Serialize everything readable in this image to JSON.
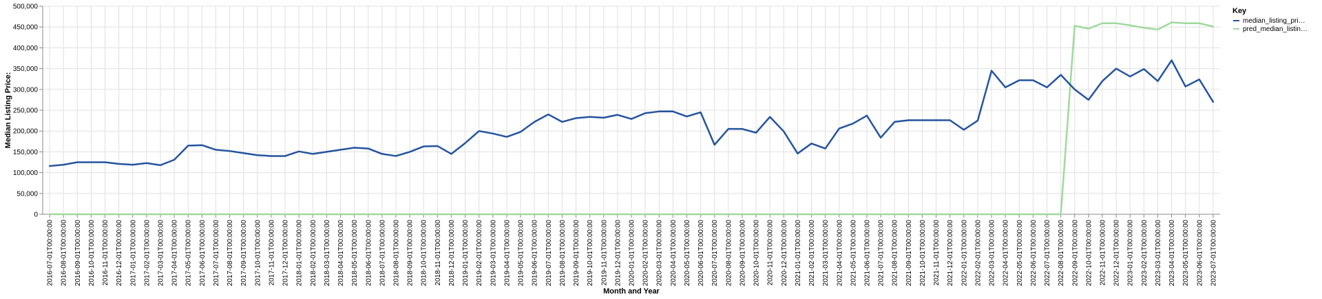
{
  "chart_data": {
    "type": "line",
    "xlabel": "Month and Year",
    "ylabel": "Median Listing Price:",
    "ylim": [
      0,
      500000
    ],
    "y_ticks": [
      0,
      50000,
      100000,
      150000,
      200000,
      250000,
      300000,
      350000,
      400000,
      450000,
      500000
    ],
    "y_tick_labels": [
      "0",
      "50,000",
      "100,000",
      "150,000",
      "200,000",
      "250,000",
      "300,000",
      "350,000",
      "400,000",
      "450,000",
      "500,000"
    ],
    "grid": true,
    "legend": {
      "title": "Key",
      "position": "right"
    },
    "x": [
      "2016-07-01T00:00:00",
      "2016-08-01T00:00:00",
      "2016-09-01T00:00:00",
      "2016-10-01T00:00:00",
      "2016-11-01T00:00:00",
      "2016-12-01T00:00:00",
      "2017-01-01T00:00:00",
      "2017-02-01T00:00:00",
      "2017-03-01T00:00:00",
      "2017-04-01T00:00:00",
      "2017-05-01T00:00:00",
      "2017-06-01T00:00:00",
      "2017-07-01T00:00:00",
      "2017-08-01T00:00:00",
      "2017-09-01T00:00:00",
      "2017-10-01T00:00:00",
      "2017-11-01T00:00:00",
      "2017-12-01T00:00:00",
      "2018-01-01T00:00:00",
      "2018-02-01T00:00:00",
      "2018-03-01T00:00:00",
      "2018-04-01T00:00:00",
      "2018-05-01T00:00:00",
      "2018-06-01T00:00:00",
      "2018-07-01T00:00:00",
      "2018-08-01T00:00:00",
      "2018-09-01T00:00:00",
      "2018-10-01T00:00:00",
      "2018-11-01T00:00:00",
      "2018-12-01T00:00:00",
      "2019-01-01T00:00:00",
      "2019-02-01T00:00:00",
      "2019-03-01T00:00:00",
      "2019-04-01T00:00:00",
      "2019-05-01T00:00:00",
      "2019-06-01T00:00:00",
      "2019-07-01T00:00:00",
      "2019-08-01T00:00:00",
      "2019-09-01T00:00:00",
      "2019-10-01T00:00:00",
      "2019-11-01T00:00:00",
      "2019-12-01T00:00:00",
      "2020-01-01T00:00:00",
      "2020-02-01T00:00:00",
      "2020-03-01T00:00:00",
      "2020-04-01T00:00:00",
      "2020-05-01T00:00:00",
      "2020-06-01T00:00:00",
      "2020-07-01T00:00:00",
      "2020-08-01T00:00:00",
      "2020-09-01T00:00:00",
      "2020-10-01T00:00:00",
      "2020-11-01T00:00:00",
      "2020-12-01T00:00:00",
      "2021-01-01T00:00:00",
      "2021-02-01T00:00:00",
      "2021-03-01T00:00:00",
      "2021-04-01T00:00:00",
      "2021-05-01T00:00:00",
      "2021-06-01T00:00:00",
      "2021-07-01T00:00:00",
      "2021-08-01T00:00:00",
      "2021-09-01T00:00:00",
      "2021-10-01T00:00:00",
      "2021-11-01T00:00:00",
      "2021-12-01T00:00:00",
      "2022-01-01T00:00:00",
      "2022-02-01T00:00:00",
      "2022-03-01T00:00:00",
      "2022-04-01T00:00:00",
      "2022-05-01T00:00:00",
      "2022-06-01T00:00:00",
      "2022-07-01T00:00:00",
      "2022-08-01T00:00:00",
      "2022-09-01T00:00:00",
      "2022-10-01T00:00:00",
      "2022-11-01T00:00:00",
      "2022-12-01T00:00:00",
      "2023-01-01T00:00:00",
      "2023-02-01T00:00:00",
      "2023-03-01T00:00:00",
      "2023-04-01T00:00:00",
      "2023-05-01T00:00:00",
      "2023-06-01T00:00:00",
      "2023-07-01T00:00:00"
    ],
    "series": [
      {
        "name": "median_listing_pri…",
        "color": "#24539f",
        "values": [
          116000,
          119000,
          125000,
          125000,
          125000,
          121000,
          119000,
          123000,
          118000,
          131000,
          165000,
          166000,
          155000,
          152000,
          147000,
          142000,
          140000,
          140000,
          151000,
          145000,
          150000,
          155000,
          160000,
          158000,
          145000,
          140000,
          150000,
          163000,
          164000,
          145000,
          171000,
          200000,
          194000,
          186000,
          198000,
          222000,
          240000,
          222000,
          231000,
          234000,
          232000,
          239000,
          229000,
          243000,
          247000,
          247000,
          235000,
          245000,
          167000,
          205000,
          205000,
          196000,
          234000,
          199000,
          146000,
          170000,
          158000,
          206000,
          218000,
          237000,
          184000,
          222000,
          226000,
          226000,
          226000,
          226000,
          203000,
          225000,
          345000,
          305000,
          322000,
          322000,
          305000,
          335000,
          300000,
          275000,
          320000,
          350000,
          331000,
          349000,
          320000,
          370000,
          307000,
          324000,
          270000
        ]
      },
      {
        "name": "pred_median_listin…",
        "color": "#a0d99b",
        "values": [
          0,
          0,
          0,
          0,
          0,
          0,
          0,
          0,
          0,
          0,
          0,
          0,
          0,
          0,
          0,
          0,
          0,
          0,
          0,
          0,
          0,
          0,
          0,
          0,
          0,
          0,
          0,
          0,
          0,
          0,
          0,
          0,
          0,
          0,
          0,
          0,
          0,
          0,
          0,
          0,
          0,
          0,
          0,
          0,
          0,
          0,
          0,
          0,
          0,
          0,
          0,
          0,
          0,
          0,
          0,
          0,
          0,
          0,
          0,
          0,
          0,
          0,
          0,
          0,
          0,
          0,
          0,
          0,
          0,
          0,
          0,
          0,
          0,
          0,
          453000,
          446000,
          459000,
          459000,
          454000,
          448000,
          444000,
          461000,
          459000,
          459000,
          451000
        ]
      }
    ]
  }
}
